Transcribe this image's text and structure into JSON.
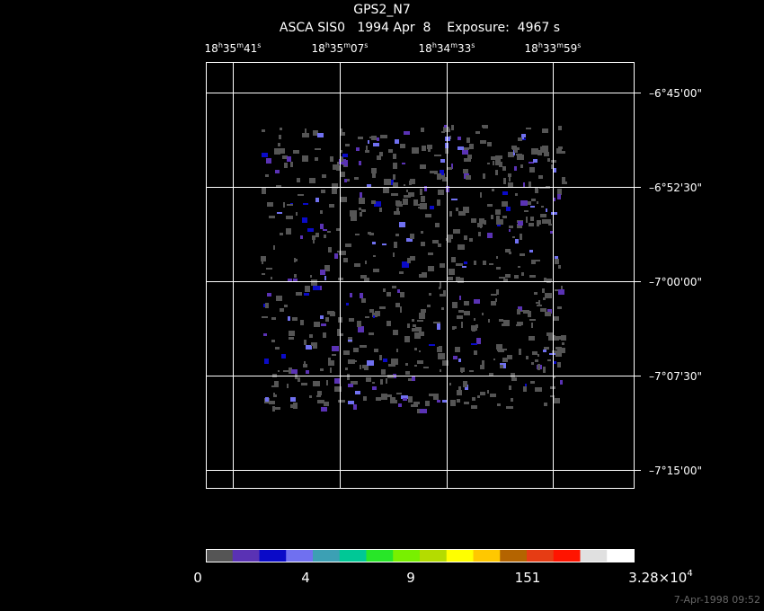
{
  "header": {
    "title": "GPS2_N7",
    "subtitle": "ASCA SIS0   1994 Apr  8    Exposure:  4967 s"
  },
  "ra_labels": [
    [
      "18",
      "h",
      "35",
      "m",
      "41",
      "s"
    ],
    [
      "18",
      "h",
      "35",
      "m",
      "07",
      "s"
    ],
    [
      "18",
      "h",
      "34",
      "m",
      "33",
      "s"
    ],
    [
      "18",
      "h",
      "33",
      "m",
      "59",
      "s"
    ]
  ],
  "dec_labels": [
    "–6°45'00\"",
    "–6°52'30\"",
    "–7°00'00\"",
    "–7°07'30\"",
    "–7°15'00\""
  ],
  "colorbar": {
    "colors": [
      "#555555",
      "#5a32b4",
      "#0a0ac8",
      "#7070f0",
      "#3ca0b4",
      "#00c896",
      "#28e628",
      "#78f000",
      "#b4dc00",
      "#ffff00",
      "#ffc800",
      "#b46400",
      "#e63c14",
      "#ff1400",
      "#e0e0e0",
      "#ffffff"
    ],
    "labels": [
      "0",
      "4",
      "9",
      "151"
    ],
    "max_label": {
      "mantissa": "3.28×10",
      "exponent": "4"
    }
  },
  "timestamp": "7-Apr-1998 09:52"
}
